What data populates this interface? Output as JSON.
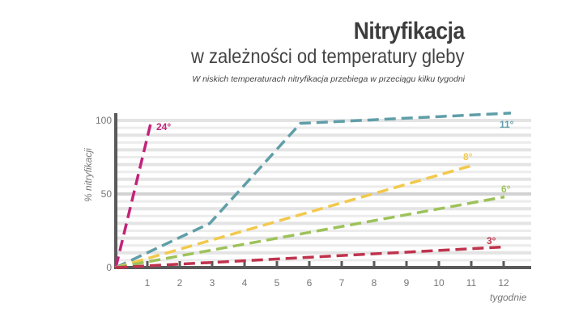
{
  "header": {
    "title": "Nitryfikacja",
    "subtitle": "w zależności od temperatury gleby",
    "note": "W niskich temperaturach nitryfikacja przebiega w przeciągu kilku tygodni"
  },
  "chart_data": {
    "type": "line",
    "title": "Nitryfikacja w zależności od temperatury gleby",
    "subtitle": "W niskich temperaturach nitryfikacja przebiega w przeciągu kilku tygodni",
    "xlabel": "tygodnie",
    "ylabel": "% nitryfikacji",
    "xlim": [
      0,
      12.8
    ],
    "ylim": [
      0,
      105
    ],
    "x_ticks": [
      1,
      2,
      3,
      4,
      5,
      6,
      7,
      8,
      9,
      10,
      11,
      12
    ],
    "y_ticks": [
      0,
      50,
      100
    ],
    "grid": "horizontal",
    "line_style": "dashed",
    "series": [
      {
        "name": "24°",
        "color": "#c2237a",
        "points": [
          [
            0,
            0
          ],
          [
            1.1,
            100
          ]
        ]
      },
      {
        "name": "11°",
        "color": "#5f9ea8",
        "points": [
          [
            0,
            0
          ],
          [
            2.9,
            30
          ],
          [
            5.7,
            98
          ],
          [
            12.2,
            105
          ]
        ]
      },
      {
        "name": "8°",
        "color": "#f2c94c",
        "points": [
          [
            0,
            0
          ],
          [
            11.1,
            70
          ]
        ]
      },
      {
        "name": "6°",
        "color": "#9dc25a",
        "points": [
          [
            0,
            0
          ],
          [
            12.0,
            48
          ]
        ]
      },
      {
        "name": "3°",
        "color": "#c0334d",
        "points": [
          [
            0,
            0
          ],
          [
            12.0,
            14
          ]
        ]
      }
    ]
  }
}
